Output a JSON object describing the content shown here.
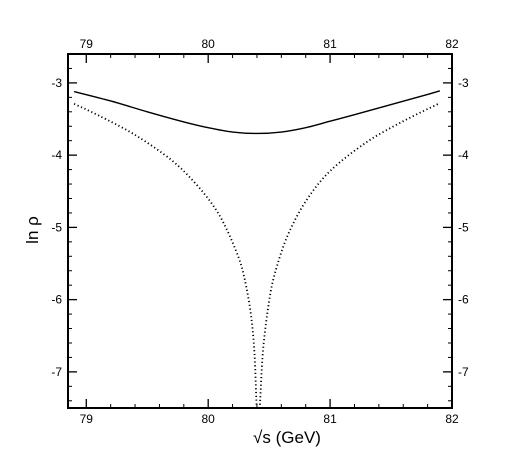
{
  "chart_data": {
    "type": "line",
    "title": "",
    "xlabel": "√s   (GeV)",
    "ylabel": "ln ρ",
    "xlim": [
      78.85,
      82.0
    ],
    "ylim": [
      -7.5,
      -2.6
    ],
    "xticks": [
      79,
      80,
      81,
      82
    ],
    "yticks": [
      -3,
      -4,
      -5,
      -6,
      -7
    ],
    "xtick_labels": [
      "79",
      "80",
      "81",
      "82"
    ],
    "ytick_labels": [
      "-3",
      "-4",
      "-5",
      "-6",
      "-7"
    ],
    "mirror_axes": true,
    "grid": false,
    "legend": "none",
    "series": [
      {
        "style": "solid",
        "color": "#000000",
        "x": [
          78.9,
          79.2,
          79.5,
          79.8,
          80.0,
          80.2,
          80.4,
          80.6,
          80.8,
          81.0,
          81.2,
          81.5,
          81.8,
          81.9
        ],
        "y": [
          -3.12,
          -3.25,
          -3.4,
          -3.54,
          -3.62,
          -3.68,
          -3.7,
          -3.68,
          -3.62,
          -3.53,
          -3.44,
          -3.3,
          -3.16,
          -3.11
        ]
      },
      {
        "style": "dotted",
        "color": "#000000",
        "x": [
          78.9,
          79.1,
          79.4,
          79.7,
          79.9,
          80.05,
          80.15,
          80.25,
          80.3,
          80.35,
          80.38,
          80.4,
          80.42,
          80.45,
          80.5,
          80.55,
          80.65,
          80.8,
          81.0,
          81.3,
          81.6,
          81.9
        ],
        "y": [
          -3.29,
          -3.45,
          -3.72,
          -4.07,
          -4.4,
          -4.72,
          -5.02,
          -5.42,
          -5.72,
          -6.2,
          -6.75,
          -7.55,
          -7.55,
          -6.7,
          -6.02,
          -5.62,
          -5.12,
          -4.64,
          -4.22,
          -3.82,
          -3.53,
          -3.28
        ]
      }
    ]
  }
}
